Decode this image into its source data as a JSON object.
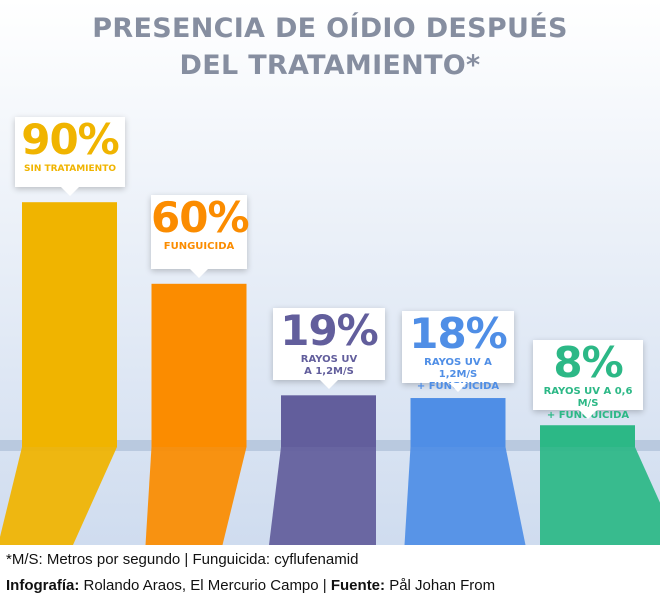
{
  "title": [
    "PRESENCIA DE OÍDIO DESPUÉS",
    "DEL TRATAMIENTO*"
  ],
  "chart_data": {
    "type": "bar",
    "title": "PRESENCIA DE OÍDIO DESPUÉS DEL TRATAMIENTO*",
    "ylim": [
      0,
      100
    ],
    "categories": [
      "SIN TRATAMIENTO",
      "FUNGUICIDA",
      "RAYOS UV A 1,2M/S",
      "RAYOS UV A 1,2M/S + FUNGUICIDA",
      "RAYOS UV A 0,6 M/S + FUNGUICIDA"
    ],
    "values": [
      90,
      60,
      19,
      18,
      8
    ],
    "value_labels": [
      "90%",
      "60%",
      "19%",
      "18%",
      "8%"
    ],
    "label_lines": [
      [
        "SIN TRATAMIENTO"
      ],
      [
        "FUNGUICIDA"
      ],
      [
        "RAYOS UV",
        "A 1,2M/S"
      ],
      [
        "RAYOS UV A 1,2M/S",
        "+ FUNGUICIDA"
      ],
      [
        "RAYOS UV A 0,6 M/S",
        "+ FUNGUICIDA"
      ]
    ],
    "colors": [
      "#f0b400",
      "#fb8c00",
      "#625e9c",
      "#4f8ee6",
      "#2cb886"
    ],
    "grid": false,
    "legend": "none"
  },
  "footer": {
    "note": "*M/S: Metros por segundo | Funguicida: cyflufenamid",
    "credit_label": "Infografía:",
    "credit_text": " Rolando Araos, El Mercurio Campo | ",
    "source_label": "Fuente:",
    "source_text": " Pål Johan From"
  }
}
